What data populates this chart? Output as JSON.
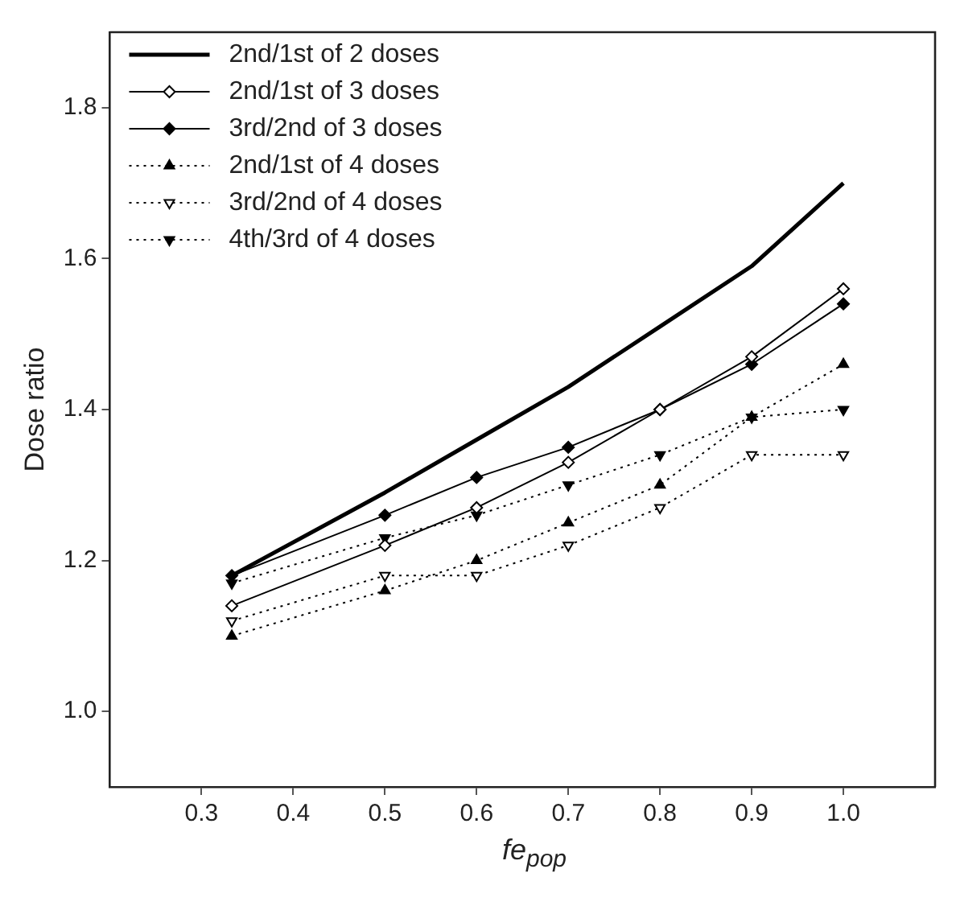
{
  "chart_data": {
    "type": "line",
    "xlabel": "fe$_{pop}$",
    "ylabel": "Dose ratio",
    "x": [
      0.333,
      0.5,
      0.6,
      0.7,
      0.8,
      0.9,
      1.0
    ],
    "xlim": [
      0.2,
      1.1
    ],
    "xticks": [
      0.3,
      0.4,
      0.5,
      0.6,
      0.7,
      0.8,
      0.9,
      {
        "value": 1.0,
        "label": "1.0"
      }
    ],
    "ylim": [
      0.9,
      1.9
    ],
    "yticks": [
      {
        "value": 1.0,
        "label": "1.0"
      },
      1.2,
      1.4,
      1.6,
      1.8
    ],
    "grid": false,
    "legend": "top left",
    "series": [
      {
        "name": "2nd/1st of 2 doses",
        "color": "#000000",
        "marker": "none",
        "line_style": "solid",
        "values": [
          1.18,
          1.29,
          1.36,
          1.43,
          1.51,
          1.59,
          1.7
        ]
      },
      {
        "name": "2nd/1st of 3 doses",
        "color": "#000000",
        "marker": "diamond-open",
        "line_style": "solid",
        "values": [
          1.14,
          1.22,
          1.27,
          1.33,
          1.4,
          1.47,
          1.56
        ]
      },
      {
        "name": "3rd/2nd of 3 doses",
        "color": "#000000",
        "marker": "diamond",
        "line_style": "solid",
        "values": [
          1.18,
          1.26,
          1.31,
          1.35,
          1.4,
          1.46,
          1.54
        ]
      },
      {
        "name": "2nd/1st of 4 doses",
        "color": "#000000",
        "marker": "triangle",
        "line_style": "dotted",
        "values": [
          1.1,
          1.16,
          1.2,
          1.25,
          1.3,
          1.39,
          1.46
        ]
      },
      {
        "name": "3rd/2nd of 4 doses",
        "color": "#000000",
        "marker": "triangle-down-open",
        "line_style": "dotted",
        "values": [
          1.12,
          1.18,
          1.18,
          1.22,
          1.27,
          1.34,
          1.34
        ]
      },
      {
        "name": "4th/3rd of 4 doses",
        "color": "#000000",
        "marker": "triangle-down",
        "line_style": "dotted",
        "values": [
          1.17,
          1.23,
          1.26,
          1.3,
          1.34,
          1.39,
          1.4
        ]
      }
    ]
  }
}
